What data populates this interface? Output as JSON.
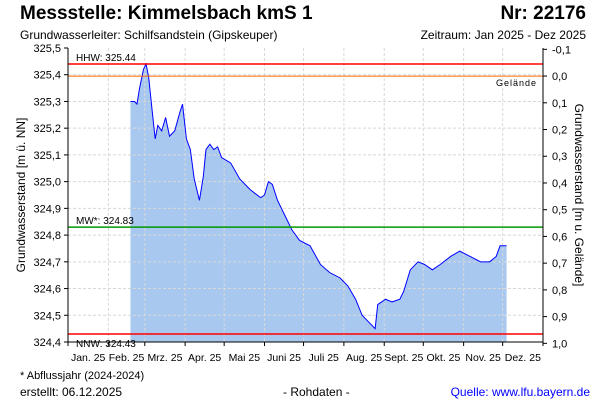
{
  "header": {
    "title": "Messstelle: Kimmelsbach kmS 1",
    "nr": "Nr: 22176",
    "aquifer": "Grundwasserleiter:   Schilfsandstein (Gipskeuper)",
    "period": "Zeitraum: Jan 2025 - Dez 2025"
  },
  "footer": {
    "note": "* Abflussjahr (2024-2024)",
    "created": "erstellt:  06.12.2025",
    "raw": "- Rohdaten -",
    "source": "Quelle: www.lfu.bayern.de"
  },
  "colors": {
    "line": "#0000ff",
    "fill": "#a8c8f0",
    "hhw": "#ff0000",
    "nnw": "#ff0000",
    "mw": "#009900",
    "ground": "#ff6600"
  },
  "chart_data": {
    "type": "area",
    "ylabel": "Grundwasserstand [m ü. NN]",
    "y2label": "Grundwasserstand [m u. Gelände]",
    "ylim": [
      324.4,
      325.5
    ],
    "yticks": [
      "325,5",
      "325,4",
      "325,3",
      "325,2",
      "325,1",
      "325,0",
      "324,9",
      "324,8",
      "324,7",
      "324,6",
      "324,5",
      "324,4"
    ],
    "y2ticks": [
      "-0,1",
      "0,0",
      "0,1",
      "0,2",
      "0,3",
      "0,4",
      "0,5",
      "0,6",
      "0,7",
      "0,8",
      "0,9",
      "1,0"
    ],
    "ground_level": 325.395,
    "months": [
      "Jan. 25",
      "Feb. 25",
      "Mrz. 25",
      "Apr. 25",
      "Mai 25",
      "Juni 25",
      "Juli 25",
      "Aug. 25",
      "Sept. 25",
      "Okt. 25",
      "Nov. 25",
      "Dez. 25"
    ],
    "reference_lines": [
      {
        "label": "HHW: 325.44",
        "value": 325.44,
        "color": "#ff0000"
      },
      {
        "label": "Gelände",
        "value": 325.395,
        "color": "#ff6600"
      },
      {
        "label": "MW*: 324.83",
        "value": 324.83,
        "color": "#009900"
      },
      {
        "label": "NNW: 324.43",
        "value": 324.43,
        "color": "#ff0000"
      }
    ],
    "x_unit": "day of year 2025",
    "x": [
      48,
      51,
      53,
      55,
      58,
      60,
      62,
      65,
      67,
      69,
      72,
      75,
      78,
      82,
      86,
      88,
      91,
      94,
      97,
      99,
      101,
      104,
      106,
      109,
      112,
      115,
      118,
      125,
      132,
      140,
      148,
      151,
      154,
      157,
      161,
      167,
      172,
      178,
      186,
      194,
      201,
      209,
      215,
      221,
      226,
      232,
      236,
      238,
      244,
      249,
      255,
      258,
      263,
      269,
      274,
      280,
      286,
      294,
      301,
      309,
      317,
      324,
      329,
      332,
      335,
      337
    ],
    "values": [
      325.3,
      325.3,
      325.29,
      325.35,
      325.42,
      325.44,
      325.39,
      325.25,
      325.16,
      325.21,
      325.19,
      325.24,
      325.17,
      325.19,
      325.26,
      325.29,
      325.16,
      325.12,
      325.01,
      324.97,
      324.93,
      325.02,
      325.12,
      325.14,
      325.12,
      325.13,
      325.09,
      325.07,
      325.01,
      324.97,
      324.94,
      324.95,
      325.0,
      324.99,
      324.93,
      324.87,
      324.82,
      324.78,
      324.76,
      324.69,
      324.66,
      324.64,
      324.61,
      324.56,
      324.5,
      324.47,
      324.45,
      324.54,
      324.56,
      324.55,
      324.56,
      324.59,
      324.67,
      324.7,
      324.69,
      324.67,
      324.69,
      324.72,
      324.74,
      324.72,
      324.7,
      324.7,
      324.72,
      324.76,
      324.76,
      324.76
    ]
  }
}
